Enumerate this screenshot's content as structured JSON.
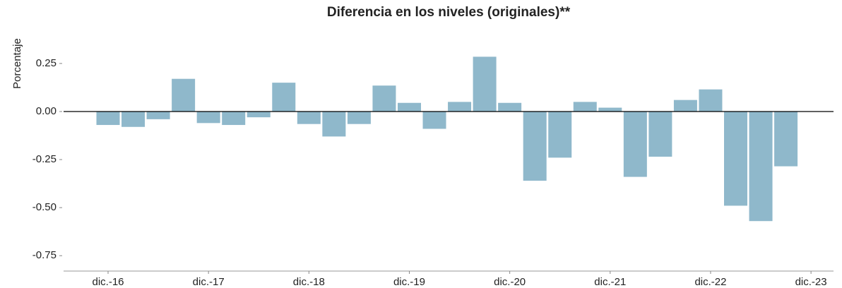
{
  "chart_data": {
    "type": "bar",
    "title": "Diferencia en los niveles (originales)**",
    "y_label": "Porcentaje",
    "categories": [
      "dic.-16",
      null,
      null,
      null,
      "dic.-17",
      null,
      null,
      null,
      "dic.-18",
      null,
      null,
      null,
      "dic.-19",
      null,
      null,
      null,
      "dic.-20",
      null,
      null,
      null,
      "dic.-21",
      null,
      null,
      null,
      "dic.-22",
      null,
      null,
      null,
      "dic.-23"
    ],
    "values": [
      -0.07,
      -0.08,
      -0.04,
      0.17,
      -0.06,
      -0.07,
      -0.03,
      0.15,
      -0.065,
      -0.13,
      -0.065,
      0.135,
      0.045,
      -0.09,
      0.05,
      0.285,
      0.045,
      -0.36,
      -0.24,
      0.05,
      0.02,
      -0.34,
      -0.235,
      0.06,
      0.115,
      -0.49,
      -0.57,
      -0.285,
      null
    ],
    "color": "#8fb8cb",
    "ylim": [
      -0.83,
      0.47
    ],
    "yticks": [
      -0.75,
      {
        "value": -0.5,
        "label": "-0.50"
      },
      -0.25,
      {
        "value": 0,
        "label": "0.00"
      },
      0.25
    ]
  }
}
